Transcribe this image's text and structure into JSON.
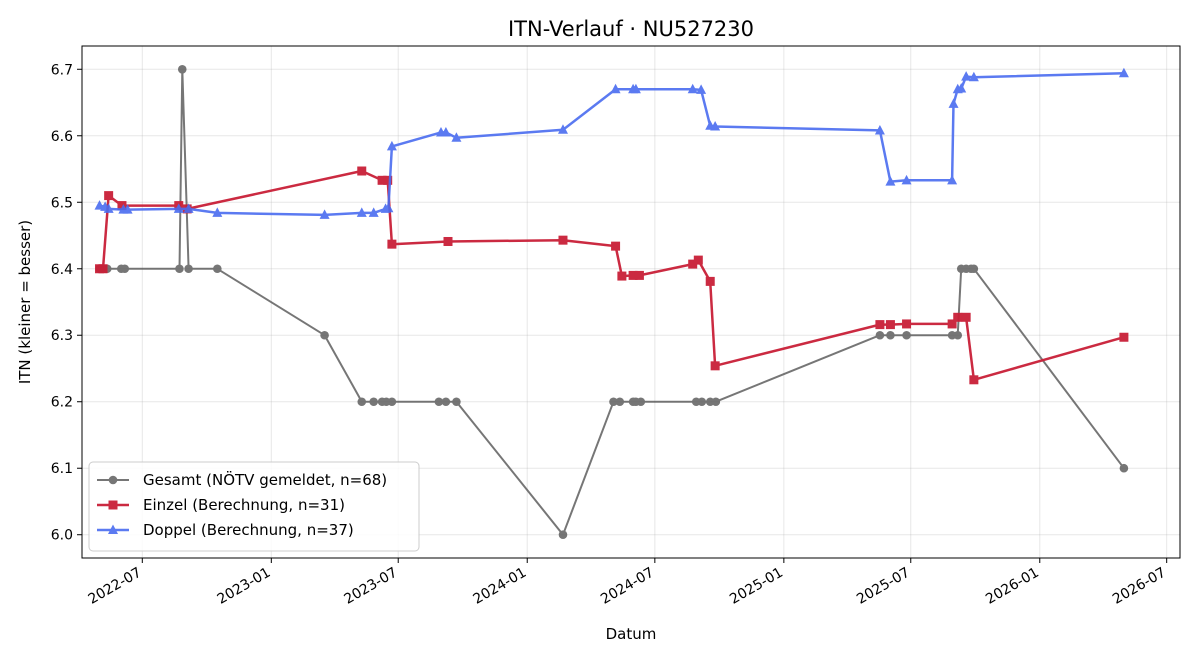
{
  "chart_data": {
    "type": "line",
    "title": "ITN-Verlauf · NU527230",
    "xlabel": "Datum",
    "ylabel": "ITN  (kleiner = besser)",
    "x_axis_type": "date",
    "xlim": [
      "2022-04-06",
      "2026-07-20"
    ],
    "ylim": [
      5.965,
      6.735
    ],
    "grid": true,
    "legend_position": "lower-left",
    "x_ticks": [
      "2022-07",
      "2023-01",
      "2023-07",
      "2024-01",
      "2024-07",
      "2025-01",
      "2025-07",
      "2026-01",
      "2026-07"
    ],
    "y_ticks": [
      "6.0",
      "6.1",
      "6.2",
      "6.3",
      "6.4",
      "6.5",
      "6.6",
      "6.7"
    ],
    "series": [
      {
        "name": "Gesamt (NÖTV gemeldet, n=68)",
        "color": "#555555",
        "marker": "circle",
        "points": [
          [
            "2022-05-01",
            6.4
          ],
          [
            "2022-05-04",
            6.4
          ],
          [
            "2022-05-09",
            6.4
          ],
          [
            "2022-05-12",
            6.4
          ],
          [
            "2022-06-01",
            6.4
          ],
          [
            "2022-06-06",
            6.4
          ],
          [
            "2022-08-23",
            6.4
          ],
          [
            "2022-08-27",
            6.7
          ],
          [
            "2022-09-05",
            6.4
          ],
          [
            "2022-10-16",
            6.4
          ],
          [
            "2023-03-18",
            6.3
          ],
          [
            "2023-05-10",
            6.2
          ],
          [
            "2023-05-27",
            6.2
          ],
          [
            "2023-06-08",
            6.2
          ],
          [
            "2023-06-14",
            6.2
          ],
          [
            "2023-06-22",
            6.2
          ],
          [
            "2023-08-28",
            6.2
          ],
          [
            "2023-09-07",
            6.2
          ],
          [
            "2023-09-22",
            6.2
          ],
          [
            "2024-02-21",
            6.0
          ],
          [
            "2024-05-03",
            6.2
          ],
          [
            "2024-05-12",
            6.2
          ],
          [
            "2024-05-31",
            6.2
          ],
          [
            "2024-06-04",
            6.2
          ],
          [
            "2024-06-11",
            6.2
          ],
          [
            "2024-08-29",
            6.2
          ],
          [
            "2024-09-06",
            6.2
          ],
          [
            "2024-09-18",
            6.2
          ],
          [
            "2024-09-26",
            6.2
          ],
          [
            "2025-05-18",
            6.3
          ],
          [
            "2025-06-02",
            6.3
          ],
          [
            "2025-06-25",
            6.3
          ],
          [
            "2025-08-29",
            6.3
          ],
          [
            "2025-09-06",
            6.3
          ],
          [
            "2025-09-11",
            6.4
          ],
          [
            "2025-09-18",
            6.4
          ],
          [
            "2025-09-25",
            6.4
          ],
          [
            "2025-09-29",
            6.4
          ],
          [
            "2026-05-01",
            6.1
          ]
        ]
      },
      {
        "name": "Einzel (Berechnung, n=31)",
        "color": "#c91f37",
        "marker": "square",
        "points": [
          [
            "2022-05-01",
            6.4
          ],
          [
            "2022-05-06",
            6.4
          ],
          [
            "2022-05-14",
            6.51
          ],
          [
            "2022-06-02",
            6.495
          ],
          [
            "2022-08-22",
            6.495
          ],
          [
            "2022-09-03",
            6.49
          ],
          [
            "2023-05-10",
            6.547
          ],
          [
            "2023-06-08",
            6.533
          ],
          [
            "2023-06-16",
            6.533
          ],
          [
            "2023-06-22",
            6.437
          ],
          [
            "2023-09-10",
            6.441
          ],
          [
            "2024-02-21",
            6.443
          ],
          [
            "2024-05-06",
            6.434
          ],
          [
            "2024-05-15",
            6.389
          ],
          [
            "2024-05-31",
            6.39
          ],
          [
            "2024-06-09",
            6.39
          ],
          [
            "2024-08-24",
            6.407
          ],
          [
            "2024-09-01",
            6.413
          ],
          [
            "2024-09-18",
            6.381
          ],
          [
            "2024-09-25",
            6.254
          ],
          [
            "2025-05-18",
            6.316
          ],
          [
            "2025-06-02",
            6.316
          ],
          [
            "2025-06-25",
            6.317
          ],
          [
            "2025-08-29",
            6.317
          ],
          [
            "2025-09-06",
            6.327
          ],
          [
            "2025-09-18",
            6.327
          ],
          [
            "2025-09-29",
            6.233
          ],
          [
            "2026-05-01",
            6.297
          ]
        ]
      },
      {
        "name": "Doppel (Berechnung, n=37)",
        "color": "#4a6cf0",
        "marker": "triangle",
        "points": [
          [
            "2022-05-01",
            6.495
          ],
          [
            "2022-05-09",
            6.493
          ],
          [
            "2022-05-14",
            6.49
          ],
          [
            "2022-06-04",
            6.489
          ],
          [
            "2022-06-10",
            6.489
          ],
          [
            "2022-08-22",
            6.49
          ],
          [
            "2022-09-05",
            6.49
          ],
          [
            "2022-10-16",
            6.484
          ],
          [
            "2023-03-18",
            6.481
          ],
          [
            "2023-05-10",
            6.484
          ],
          [
            "2023-05-27",
            6.484
          ],
          [
            "2023-06-13",
            6.49
          ],
          [
            "2023-06-17",
            6.491
          ],
          [
            "2023-06-22",
            6.584
          ],
          [
            "2023-08-31",
            6.605
          ],
          [
            "2023-09-07",
            6.605
          ],
          [
            "2023-09-22",
            6.597
          ],
          [
            "2024-02-21",
            6.609
          ],
          [
            "2024-05-06",
            6.67
          ],
          [
            "2024-05-31",
            6.67
          ],
          [
            "2024-06-04",
            6.67
          ],
          [
            "2024-08-24",
            6.67
          ],
          [
            "2024-09-05",
            6.669
          ],
          [
            "2024-09-18",
            6.615
          ],
          [
            "2024-09-25",
            6.614
          ],
          [
            "2025-05-18",
            6.608
          ],
          [
            "2025-06-02",
            6.531
          ],
          [
            "2025-06-25",
            6.533
          ],
          [
            "2025-08-29",
            6.533
          ],
          [
            "2025-08-31",
            6.648
          ],
          [
            "2025-09-06",
            6.67
          ],
          [
            "2025-09-11",
            6.671
          ],
          [
            "2025-09-18",
            6.689
          ],
          [
            "2025-09-29",
            6.688
          ],
          [
            "2026-05-01",
            6.694
          ]
        ]
      }
    ]
  }
}
